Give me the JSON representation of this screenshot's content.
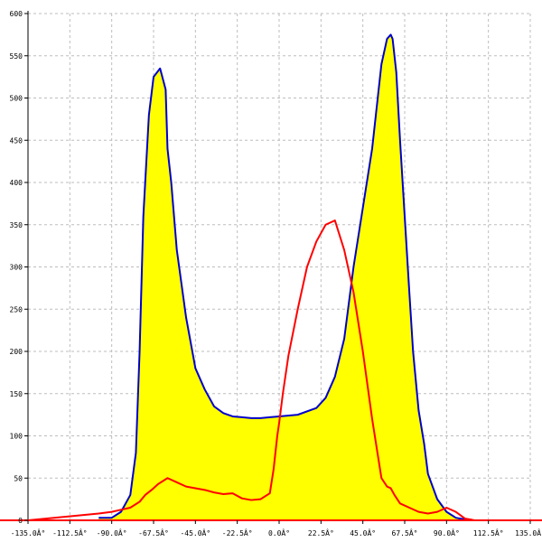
{
  "chart_data": {
    "type": "area",
    "title": "",
    "xlabel": "",
    "ylabel": "",
    "xlim": [
      -135,
      135
    ],
    "ylim": [
      0,
      600
    ],
    "grid": true,
    "x_ticks": [
      -135,
      -112.5,
      -90,
      -67.5,
      -45,
      -22.5,
      0,
      22.5,
      45,
      67.5,
      90,
      112.5,
      135
    ],
    "x_tick_labels": [
      "-135.0Â°",
      "-112.5Â°",
      "-90.0Â°",
      "-67.5Â°",
      "-45.0Â°",
      "-22.5Â°",
      "0.0Â°",
      "22.5Â°",
      "45.0Â°",
      "67.5Â°",
      "90.0Â°",
      "112.5Â°",
      "135.0Â°"
    ],
    "y_ticks": [
      0,
      50,
      100,
      150,
      200,
      250,
      300,
      350,
      400,
      450,
      500,
      550,
      600
    ],
    "y_tick_labels": [
      "0",
      "50",
      "100",
      "150",
      "200",
      "250",
      "300",
      "350",
      "400",
      "450",
      "500",
      "550",
      "600"
    ],
    "series": [
      {
        "color": "#0000cc",
        "fill": "#ffff00",
        "x": [
          -97,
          -90,
          -85,
          -80,
          -77,
          -75,
          -73,
          -70,
          -67.5,
          -64,
          -61,
          -60,
          -58,
          -55,
          -50,
          -45,
          -40,
          -35,
          -30,
          -25,
          -20,
          -15,
          -10,
          -5,
          0,
          10,
          20,
          25,
          30,
          35,
          40,
          45,
          50,
          55,
          58,
          60,
          61,
          63,
          65,
          67.5,
          70,
          72,
          75,
          78,
          80,
          85,
          90,
          95,
          100,
          103,
          105
        ],
        "y": [
          3,
          3,
          10,
          30,
          80,
          200,
          360,
          480,
          525,
          535,
          510,
          440,
          400,
          320,
          240,
          180,
          155,
          135,
          127,
          123,
          122,
          121,
          121,
          122,
          123,
          125,
          133,
          145,
          170,
          215,
          300,
          370,
          440,
          540,
          570,
          575,
          570,
          530,
          450,
          360,
          270,
          200,
          130,
          90,
          55,
          25,
          10,
          3,
          1,
          0,
          0
        ]
      },
      {
        "color": "#ff0000",
        "x": [
          -135,
          -97,
          -90,
          -80,
          -75,
          -72,
          -68,
          -65,
          -60,
          -55,
          -50,
          -45,
          -40,
          -35,
          -30,
          -25,
          -20,
          -15,
          -10,
          -5,
          -3,
          -1,
          0,
          2,
          5,
          10,
          15,
          20,
          25,
          30,
          35,
          40,
          45,
          50,
          55,
          58,
          60,
          62,
          65,
          70,
          75,
          80,
          85,
          90,
          95,
          100,
          103,
          105,
          135
        ],
        "y": [
          0,
          8,
          10,
          15,
          22,
          30,
          37,
          43,
          50,
          45,
          40,
          38,
          36,
          33,
          31,
          32,
          26,
          24,
          25,
          32,
          60,
          100,
          115,
          150,
          195,
          250,
          300,
          330,
          350,
          355,
          320,
          270,
          200,
          120,
          50,
          40,
          38,
          30,
          20,
          15,
          10,
          8,
          10,
          15,
          10,
          2,
          1,
          0,
          0
        ]
      }
    ]
  }
}
